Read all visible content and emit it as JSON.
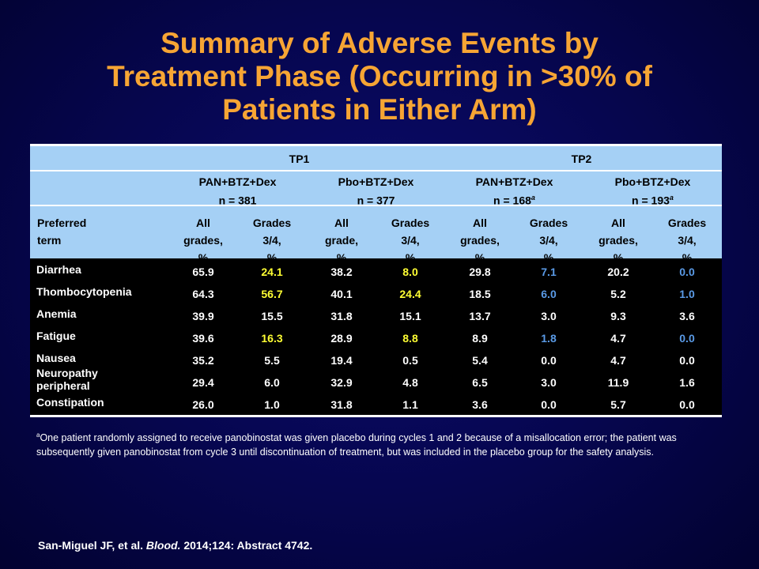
{
  "title": {
    "line1": "Summary of Adverse Events by",
    "line2": "Treatment Phase (Occurring in >30% of",
    "line3": "Patients in Either Arm)"
  },
  "table": {
    "phases": [
      "TP1",
      "TP2"
    ],
    "arms": [
      {
        "name": "PAN+BTZ+Dex",
        "n": "n = 381",
        "sup": ""
      },
      {
        "name": "Pbo+BTZ+Dex",
        "n": "n = 377",
        "sup": ""
      },
      {
        "name": "PAN+BTZ+Dex",
        "n": "n = 168",
        "sup": "a"
      },
      {
        "name": "Pbo+BTZ+Dex",
        "n": "n = 193",
        "sup": "a"
      }
    ],
    "term_header": {
      "line1": "Preferred",
      "line2": "term"
    },
    "sub_headers": [
      {
        "l1": "All",
        "l2": "grades,",
        "l3": "%"
      },
      {
        "l1": "Grades",
        "l2": "3/4,",
        "l3": "%"
      },
      {
        "l1": "All",
        "l2": "grade,",
        "l3": "%"
      },
      {
        "l1": "Grades",
        "l2": "3/4,",
        "l3": "%"
      },
      {
        "l1": "All",
        "l2": "grades,",
        "l3": "%"
      },
      {
        "l1": "Grades",
        "l2": "3/4,",
        "l3": "%"
      },
      {
        "l1": "All",
        "l2": "grades,",
        "l3": "%"
      },
      {
        "l1": "Grades",
        "l2": "3/4,",
        "l3": "%"
      }
    ],
    "rows": [
      {
        "term": "Diarrhea",
        "values": [
          "65.9",
          "24.1",
          "38.2",
          "8.0",
          "29.8",
          "7.1",
          "20.2",
          "0.0"
        ],
        "colors": [
          "",
          "yellow",
          "",
          "yellow",
          "",
          "blue",
          "",
          "blue"
        ]
      },
      {
        "term": "Thombocytopenia",
        "values": [
          "64.3",
          "56.7",
          "40.1",
          "24.4",
          "18.5",
          "6.0",
          "5.2",
          "1.0"
        ],
        "colors": [
          "",
          "yellow",
          "",
          "yellow",
          "",
          "blue",
          "",
          "blue"
        ]
      },
      {
        "term": "Anemia",
        "values": [
          "39.9",
          "15.5",
          "31.8",
          "15.1",
          "13.7",
          "3.0",
          "9.3",
          "3.6"
        ],
        "colors": [
          "",
          "",
          "",
          "",
          "",
          "",
          "",
          ""
        ]
      },
      {
        "term": "Fatigue",
        "values": [
          "39.6",
          "16.3",
          "28.9",
          "8.8",
          "8.9",
          "1.8",
          "4.7",
          "0.0"
        ],
        "colors": [
          "",
          "yellow",
          "",
          "yellow",
          "",
          "blue",
          "",
          "blue"
        ]
      },
      {
        "term": "Nausea",
        "values": [
          "35.2",
          "5.5",
          "19.4",
          "0.5",
          "5.4",
          "0.0",
          "4.7",
          "0.0"
        ],
        "colors": [
          "",
          "",
          "",
          "",
          "",
          "",
          "",
          ""
        ]
      },
      {
        "term": "Neuropathy peripheral",
        "term_l1": "Neuropathy",
        "term_l2": "peripheral",
        "values": [
          "29.4",
          "6.0",
          "32.9",
          "4.8",
          "6.5",
          "3.0",
          "11.9",
          "1.6"
        ],
        "colors": [
          "",
          "",
          "",
          "",
          "",
          "",
          "",
          ""
        ]
      },
      {
        "term": "Constipation",
        "values": [
          "26.0",
          "1.0",
          "31.8",
          "1.1",
          "3.6",
          "0.0",
          "5.7",
          "0.0"
        ],
        "colors": [
          "",
          "",
          "",
          "",
          "",
          "",
          "",
          ""
        ]
      }
    ]
  },
  "footnote": {
    "marker": "a",
    "text": "One patient randomly assigned to receive panobinostat was given placebo during cycles 1 and 2 because of a misallocation error; the patient was subsequently given panobinostat from cycle 3 until discontinuation of treatment, but was included in the placebo group for the safety analysis."
  },
  "citation": {
    "authors": "San-Miguel JF, et al.",
    "journal": "Blood.",
    "details": "2014;124: Abstract 4742."
  },
  "colors": {
    "background": "#06064e",
    "title": "#f7a534",
    "header_bg": "#a5d0f5",
    "highlight_yellow": "#ffff33",
    "highlight_blue": "#5a9ae6"
  }
}
